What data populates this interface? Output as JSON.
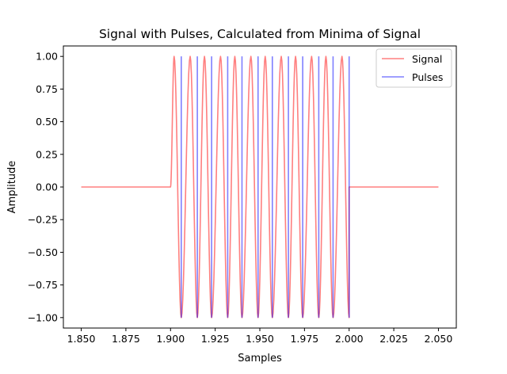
{
  "chart_data": {
    "type": "line",
    "title": "Signal with Pulses, Calculated from Minima of Signal",
    "xlabel": "Samples",
    "ylabel": "Amplitude",
    "xlim": [
      1.84,
      2.06
    ],
    "ylim": [
      -1.08,
      1.08
    ],
    "xticks": [
      1.85,
      1.875,
      1.9,
      1.925,
      1.95,
      1.975,
      2.0,
      2.025,
      2.05
    ],
    "xtick_labels": [
      "1.850",
      "1.875",
      "1.900",
      "1.925",
      "1.950",
      "1.975",
      "2.000",
      "2.025",
      "2.050"
    ],
    "yticks": [
      -1.0,
      -0.75,
      -0.5,
      -0.25,
      0.0,
      0.25,
      0.5,
      0.75,
      1.0
    ],
    "ytick_labels": [
      "−1.00",
      "−0.75",
      "−0.50",
      "−0.25",
      "0.00",
      "0.25",
      "0.50",
      "0.75",
      "1.00"
    ],
    "grid": false,
    "legend_position": "top-right",
    "series": [
      {
        "name": "Signal",
        "color": "#ff0000",
        "opacity": 0.5,
        "kind": "sine burst",
        "x_start": 1.85,
        "x_end": 2.05,
        "burst_start": 1.9,
        "burst_end": 2.0,
        "x_peaks": [
          1.902,
          1.911,
          1.919,
          1.928,
          1.936,
          1.945,
          1.953,
          1.962,
          1.97,
          1.979,
          1.987,
          1.996
        ],
        "x_minima": [
          1.906,
          1.915,
          1.923,
          1.932,
          1.94,
          1.949,
          1.957,
          1.966,
          1.974,
          1.983,
          1.991,
          2.0
        ],
        "peak_value": 1.0,
        "min_value": -1.0,
        "baseline": 0.0
      },
      {
        "name": "Pulses",
        "color": "#0000ff",
        "opacity": 0.5,
        "kind": "vertical pulses",
        "x": [
          1.906,
          1.915,
          1.923,
          1.932,
          1.94,
          1.949,
          1.957,
          1.966,
          1.974,
          1.983,
          1.991,
          2.0
        ],
        "y_low": -1.0,
        "y_high": 1.0
      }
    ]
  }
}
